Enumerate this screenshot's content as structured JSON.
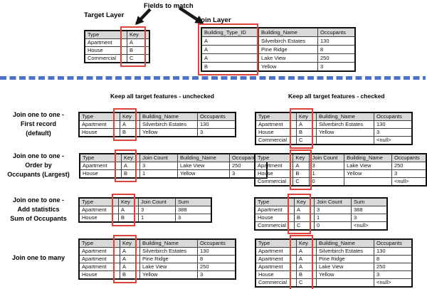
{
  "colors": {
    "highlight_red": "#df4238",
    "divider_blue": "#4c73c9",
    "header_gray": "#d9d9d9"
  },
  "top": {
    "fields_to_match_label": "Fields to match",
    "target_layer_label": "Target Layer",
    "join_layer_label": "Join Layer",
    "target_table": {
      "headers": [
        "Type",
        "Key"
      ],
      "rows": [
        [
          "Apartment",
          "A"
        ],
        [
          "House",
          "B"
        ],
        [
          "Commercial",
          "C"
        ]
      ]
    },
    "join_table": {
      "headers": [
        "Building_Type_ID",
        "Building_Name",
        "Occupants"
      ],
      "rows": [
        [
          "A",
          "Silverbirch Estates",
          "130"
        ],
        [
          "A",
          "Pine Ridge",
          "8"
        ],
        [
          "A",
          "Lake View",
          "250"
        ],
        [
          "B",
          "Yellow",
          "3"
        ]
      ]
    }
  },
  "columns": {
    "unchecked_header": "Keep all target features - unchecked",
    "checked_header": "Keep all target features - checked"
  },
  "rows": [
    {
      "label_lines": [
        "Join one to one -",
        "First record",
        "(default)"
      ],
      "unchecked": {
        "headers": [
          "Type",
          "Key",
          "Building_Name",
          "Occupants"
        ],
        "rows": [
          [
            "Apartment",
            "A",
            "Silverbirch Estates",
            "130"
          ],
          [
            "House",
            "B",
            "Yellow",
            "3"
          ]
        ]
      },
      "checked": {
        "headers": [
          "Type",
          "Key",
          "Building_Name",
          "Occupants"
        ],
        "rows": [
          [
            "Apartment",
            "A",
            "Silverbirch Estates",
            "130"
          ],
          [
            "House",
            "B",
            "Yellow",
            "3"
          ],
          [
            "Commercial",
            "C",
            "",
            "<null>"
          ]
        ]
      }
    },
    {
      "label_lines": [
        "Join one to one -",
        "Order by",
        "Occupants (Largest)"
      ],
      "unchecked": {
        "headers": [
          "Type",
          "Key",
          "Join Count",
          "Building_Name",
          "Occupants"
        ],
        "rows": [
          [
            "Apartment",
            "A",
            "3",
            "Lake View",
            "250"
          ],
          [
            "House",
            "B",
            "1",
            "Yellow",
            "3"
          ]
        ]
      },
      "checked": {
        "headers": [
          "Type",
          "Key",
          "Join Count",
          "Building_Name",
          "Occupants"
        ],
        "rows": [
          [
            "Apartment",
            "A",
            "3",
            "Lake View",
            "250"
          ],
          [
            "House",
            "B",
            "1",
            "Yellow",
            "3"
          ],
          [
            "Commercial",
            "C",
            "0",
            "",
            "<null>"
          ]
        ]
      }
    },
    {
      "label_lines": [
        "Join one to one -",
        "Add statistics",
        "Sum of Occupants"
      ],
      "unchecked": {
        "headers": [
          "Type",
          "Key",
          "Join Count",
          "Sum"
        ],
        "rows": [
          [
            "Apartment",
            "A",
            "3",
            "388"
          ],
          [
            "House",
            "B",
            "1",
            "3"
          ]
        ]
      },
      "checked": {
        "headers": [
          "Type",
          "Key",
          "Join Count",
          "Sum"
        ],
        "rows": [
          [
            "Apartment",
            "A",
            "3",
            "388"
          ],
          [
            "House",
            "B",
            "1",
            "3"
          ],
          [
            "Commercial",
            "C",
            "0",
            "<null>"
          ]
        ]
      }
    },
    {
      "label_lines": [
        "Join one to many"
      ],
      "unchecked": {
        "headers": [
          "Type",
          "Key",
          "Building_Name",
          "Occupants"
        ],
        "rows": [
          [
            "Apartment",
            "A",
            "Silverbirch Estates",
            "130"
          ],
          [
            "Apartment",
            "A",
            "Pine Ridge",
            "8"
          ],
          [
            "Apartment",
            "A",
            "Lake View",
            "250"
          ],
          [
            "House",
            "B",
            "Yellow",
            "3"
          ]
        ]
      },
      "checked": {
        "headers": [
          "Type",
          "Key",
          "Building_Name",
          "Occupants"
        ],
        "rows": [
          [
            "Apartment",
            "A",
            "Silverbirch Estates",
            "130"
          ],
          [
            "Apartment",
            "A",
            "Pine Ridge",
            "8"
          ],
          [
            "Apartment",
            "A",
            "Lake View",
            "250"
          ],
          [
            "House",
            "B",
            "Yellow",
            "3"
          ],
          [
            "Commercial",
            "C",
            "",
            "<null>"
          ]
        ]
      }
    }
  ]
}
